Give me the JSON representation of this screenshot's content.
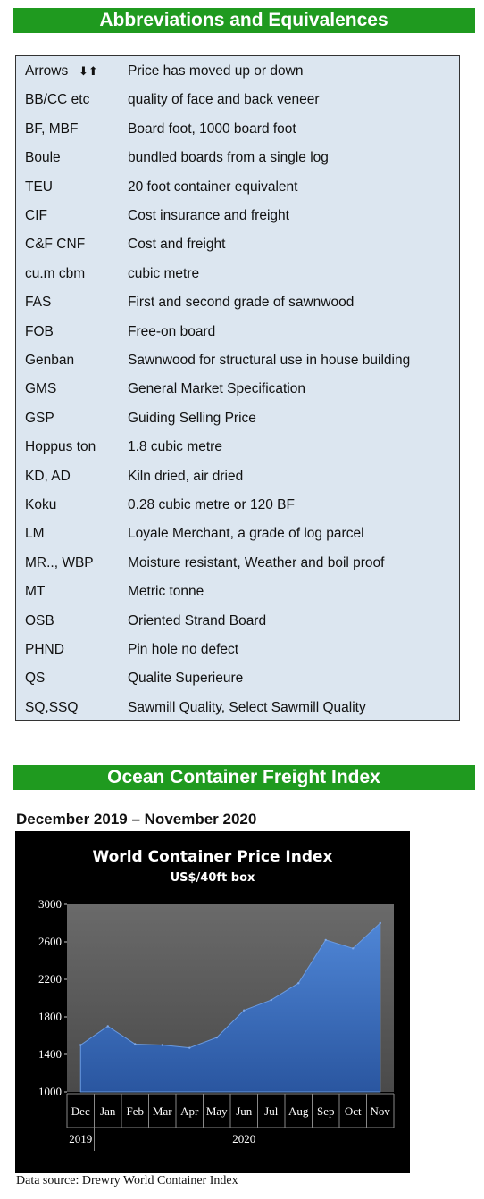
{
  "abbreviations": {
    "heading": "Abbreviations and Equivalences",
    "rows": [
      {
        "term": "Arrows",
        "definition": "Price has moved up or down"
      },
      {
        "term": "BB/CC etc",
        "definition": "quality of face and back veneer"
      },
      {
        "term": "BF, MBF",
        "definition": "Board foot, 1000 board foot"
      },
      {
        "term": "Boule",
        "definition": "bundled boards from a single log"
      },
      {
        "term": "TEU",
        "definition": "20 foot container equivalent"
      },
      {
        "term": "CIF",
        "definition": "Cost insurance and freight"
      },
      {
        "term": "C&F CNF",
        "definition": "Cost and freight"
      },
      {
        "term": "cu.m cbm",
        "definition": "cubic metre"
      },
      {
        "term": "FAS",
        "definition": "First and second grade of sawnwood"
      },
      {
        "term": "FOB",
        "definition": "Free-on board"
      },
      {
        "term": "Genban",
        "definition": "Sawnwood for structural use in house building"
      },
      {
        "term": "GMS",
        "definition": "General Market Specification"
      },
      {
        "term": "GSP",
        "definition": "Guiding Selling Price"
      },
      {
        "term": "Hoppus ton",
        "definition": "1.8 cubic metre"
      },
      {
        "term": "KD, AD",
        "definition": "Kiln dried, air dried"
      },
      {
        "term": "Koku",
        "definition": "0.28 cubic metre or 120 BF"
      },
      {
        "term": "LM",
        "definition": "Loyale Merchant, a grade of log parcel"
      },
      {
        "term": "MR.., WBP",
        "definition": "Moisture resistant, Weather and boil proof"
      },
      {
        "term": "MT",
        "definition": "Metric tonne"
      },
      {
        "term": "OSB",
        "definition": "Oriented Strand Board"
      },
      {
        "term": "PHND",
        "definition": "Pin hole no defect"
      },
      {
        "term": "QS",
        "definition": "Qualite Superieure"
      },
      {
        "term": "SQ,SSQ",
        "definition": "Sawmill Quality, Select Sawmill Quality"
      }
    ]
  },
  "ocean": {
    "heading": "Ocean Container Freight Index",
    "period": "December 2019 – November 2020",
    "source": "Data source:  Drewry World Container Index"
  },
  "colors": {
    "banner": "#1f9a1f",
    "abbr_box": "#dce6f0",
    "plot_area": "#5a5a5a",
    "area_fill": "#3f72c2"
  },
  "chart_data": {
    "type": "area",
    "title": "World Container Price Index",
    "subtitle": "US$/40ft box",
    "categories": [
      "Dec",
      "Jan",
      "Feb",
      "Mar",
      "Apr",
      "May",
      "Jun",
      "Jul",
      "Aug",
      "Sep",
      "Oct",
      "Nov"
    ],
    "year_labels": [
      "2019",
      "2020"
    ],
    "values": [
      1500,
      1700,
      1510,
      1500,
      1470,
      1580,
      1870,
      1980,
      2160,
      2620,
      2530,
      2800
    ],
    "yticks": [
      1000,
      1400,
      1800,
      2200,
      2600,
      3000
    ],
    "ylim": [
      1000,
      3000
    ],
    "xlabel": "",
    "ylabel": "",
    "grid": false,
    "legend": "none"
  }
}
